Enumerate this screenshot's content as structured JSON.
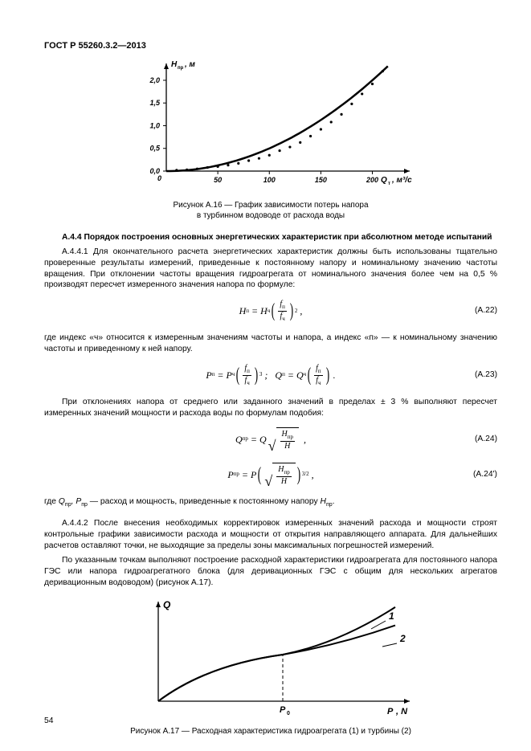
{
  "header": "ГОСТ Р 55260.3.2—2013",
  "fig16": {
    "type": "scatter+line",
    "xlabel": "Q_т, м³/с",
    "ylabel": "H_пр, м",
    "xlim": [
      0,
      230
    ],
    "ylim": [
      0,
      2.3
    ],
    "xticks": [
      50,
      100,
      150,
      200
    ],
    "yticks": [
      0,
      0.5,
      1.0,
      1.5,
      2.0
    ],
    "background_color": "#ffffff",
    "axis_color": "#000000",
    "curve_color": "#000000",
    "point_color": "#000000",
    "curve_width": 2.5,
    "scatter": [
      [
        10,
        0.02
      ],
      [
        20,
        0.03
      ],
      [
        30,
        0.05
      ],
      [
        40,
        0.08
      ],
      [
        50,
        0.1
      ],
      [
        60,
        0.13
      ],
      [
        70,
        0.17
      ],
      [
        80,
        0.23
      ],
      [
        90,
        0.28
      ],
      [
        100,
        0.35
      ],
      [
        110,
        0.45
      ],
      [
        120,
        0.53
      ],
      [
        130,
        0.63
      ],
      [
        140,
        0.77
      ],
      [
        150,
        0.92
      ],
      [
        160,
        1.08
      ],
      [
        170,
        1.25
      ],
      [
        180,
        1.48
      ],
      [
        190,
        1.7
      ],
      [
        200,
        1.92
      ],
      [
        210,
        2.2
      ]
    ],
    "caption1": "Рисунок А.16 — График зависимости потерь напора",
    "caption2": "в турбинном водоводе от расхода воды"
  },
  "s444_title": "А.4.4 Порядок построения основных энергетических характеристик при абсолютном методе испытаний",
  "p1": "А.4.4.1 Для окончательного расчета энергетических характеристик должны быть использованы тщательно проверенные результаты измерений, приведенные к постоянному напору и номинальному значению частоты вращения. При отклонении частоты вращения гидроагрегата от номинального значения более чем на 0,5 % производят пересчет измеренного значения напора по формуле:",
  "eq22_num": "(А.22)",
  "p2": "где индекс «ч» относится к измеренным значениям частоты и напора, а индекс «п» — к номинальному значению частоты и приведенному к ней напору.",
  "eq23_num": "(А.23)",
  "p3": "При отклонениях напора от среднего или заданного значений в пределах ± 3 % выполняют пересчет измеренных значений мощности и расхода воды по формулам подобия:",
  "eq24_num": "(А.24)",
  "eq24p_num": "(А.24')",
  "p4": "где Q_пр, P_пр — расход и мощность, приведенные к постоянному напору H_пр.",
  "p4_prefix": "где ",
  "p4_mid1": "Q",
  "p4_mid2": ", P",
  "p4_rest": " — расход и мощность, приведенные к постоянному напору ",
  "p4_H": "H",
  "p4_end": ".",
  "sub_pr": "пр",
  "p5": "А.4.4.2 После внесения необходимых корректировок измеренных значений расхода и мощности строят контрольные графики зависимости расхода и мощности от открытия направляющего аппарата. Для дальнейших расчетов оставляют точки, не выходящие за пределы зоны максимальных погрешностей измерений.",
  "p6": "По указанным точкам выполняют построение расходной характеристики гидроагрегата для постоянного напора ГЭС или напора гидроагрегатного блока (для деривационных ГЭС с общим для нескольких агрегатов деривационным водоводом) (рисунок А.17).",
  "fig17": {
    "type": "line",
    "ylabel": "Q",
    "xlabel2": "P, N",
    "x0_label": "P_0",
    "labels": [
      "1",
      "2"
    ],
    "axis_color": "#000000",
    "curve_color": "#000000",
    "curve_width": 2,
    "background_color": "#ffffff",
    "caption": "Рисунок А.17 — Расходная характеристика гидроагрегата (1) и турбины (2)"
  },
  "page_number": "54"
}
